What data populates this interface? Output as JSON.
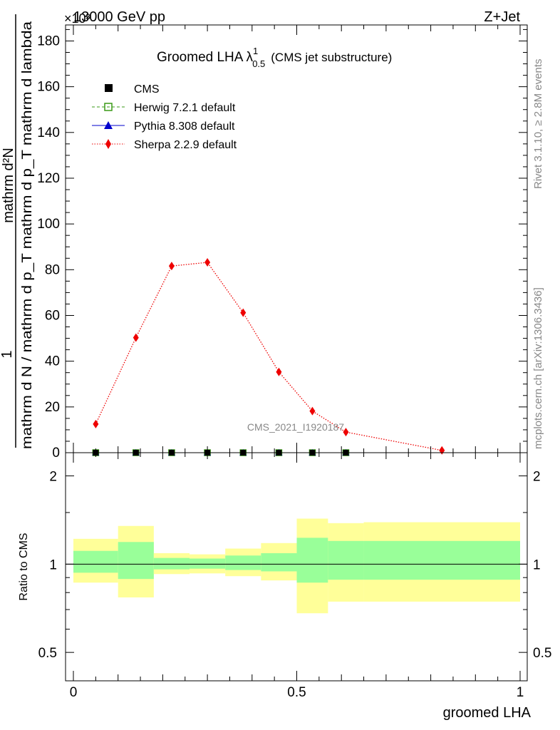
{
  "header": {
    "left": "13000 GeV pp",
    "right": "Z+Jet",
    "y_multiplier": "×10³"
  },
  "side_labels": {
    "rivet": "Rivet 3.1.10, ≥ 2.8M events",
    "mcplots": "mcplots.cern.ch [arXiv:1306.3436]"
  },
  "watermark": "CMS_2021_I1920187",
  "title": {
    "main": "Groomed LHA",
    "lambda": "λ",
    "sup": "1",
    "sub": "0.5",
    "suffix": "(CMS jet substructure)"
  },
  "legend": {
    "cms": "CMS",
    "herwig": "Herwig 7.2.1 default",
    "pythia": "Pythia 8.308 default",
    "sherpa": "Sherpa 2.2.9 default"
  },
  "axes": {
    "xlabel": "groomed LHA",
    "ylabel_main_num": "1",
    "ylabel_main_den": "mathrm d N / mathrm d p_T mathrm d p_T mathrm d lambda",
    "ylabel_main_top": "mathrm d²N",
    "ylabel_ratio": "Ratio to CMS",
    "main_yticks": [
      "0",
      "20",
      "40",
      "60",
      "80",
      "100",
      "120",
      "140",
      "160",
      "180"
    ],
    "ratio_yticks": [
      "0.5",
      "1",
      "2"
    ],
    "xticks": [
      "0",
      "0.5",
      "1"
    ]
  },
  "colors": {
    "herwig": "#3a9a17",
    "pythia": "#0000cc",
    "sherpa": "#ee0000",
    "band_outer": "#ffff99",
    "band_inner": "#99ff99"
  },
  "chart_data": {
    "type": "line",
    "xlim": [
      0,
      1
    ],
    "ylim": [
      0,
      187
    ],
    "ratio_ylim": [
      0.4,
      2.4
    ],
    "ratio_log": true,
    "bin_edges": [
      0.0,
      0.1,
      0.18,
      0.26,
      0.34,
      0.42,
      0.5,
      0.57,
      0.65,
      1.0
    ],
    "series": [
      {
        "name": "CMS",
        "x": [
          0.05,
          0.14,
          0.22,
          0.3,
          0.38,
          0.46,
          0.535,
          0.61,
          0.825
        ],
        "y": [
          0,
          0,
          0,
          0,
          0,
          0,
          0,
          0,
          0
        ]
      },
      {
        "name": "Herwig 7.2.1 default",
        "x": [
          0.05,
          0.14,
          0.22,
          0.3,
          0.38,
          0.46,
          0.535,
          0.61,
          0.825
        ],
        "y": [
          0,
          0,
          0,
          0,
          0,
          0,
          0,
          0,
          0
        ]
      },
      {
        "name": "Pythia 8.308 default",
        "x": [
          0.05,
          0.14,
          0.22,
          0.3,
          0.38,
          0.46,
          0.535,
          0.61,
          0.825
        ],
        "y": [
          0,
          0,
          0,
          0,
          0,
          0,
          0,
          0,
          0
        ]
      },
      {
        "name": "Sherpa 2.2.9 default",
        "x": [
          0.05,
          0.14,
          0.22,
          0.3,
          0.38,
          0.46,
          0.535,
          0.61,
          0.825
        ],
        "y": [
          12.5,
          50.3,
          81.6,
          83.2,
          61.2,
          35.3,
          18.2,
          9.0,
          1.0
        ]
      }
    ],
    "ratio_band_outer": [
      [
        0.865,
        1.22
      ],
      [
        0.77,
        1.35
      ],
      [
        0.925,
        1.09
      ],
      [
        0.93,
        1.08
      ],
      [
        0.91,
        1.13
      ],
      [
        0.88,
        1.18
      ],
      [
        0.68,
        1.43
      ],
      [
        0.745,
        1.38
      ],
      [
        0.745,
        1.39
      ]
    ],
    "ratio_band_inner": [
      [
        0.935,
        1.11
      ],
      [
        0.89,
        1.19
      ],
      [
        0.96,
        1.05
      ],
      [
        0.965,
        1.045
      ],
      [
        0.955,
        1.07
      ],
      [
        0.945,
        1.09
      ],
      [
        0.865,
        1.23
      ],
      [
        0.885,
        1.2
      ],
      [
        0.885,
        1.2
      ]
    ]
  }
}
